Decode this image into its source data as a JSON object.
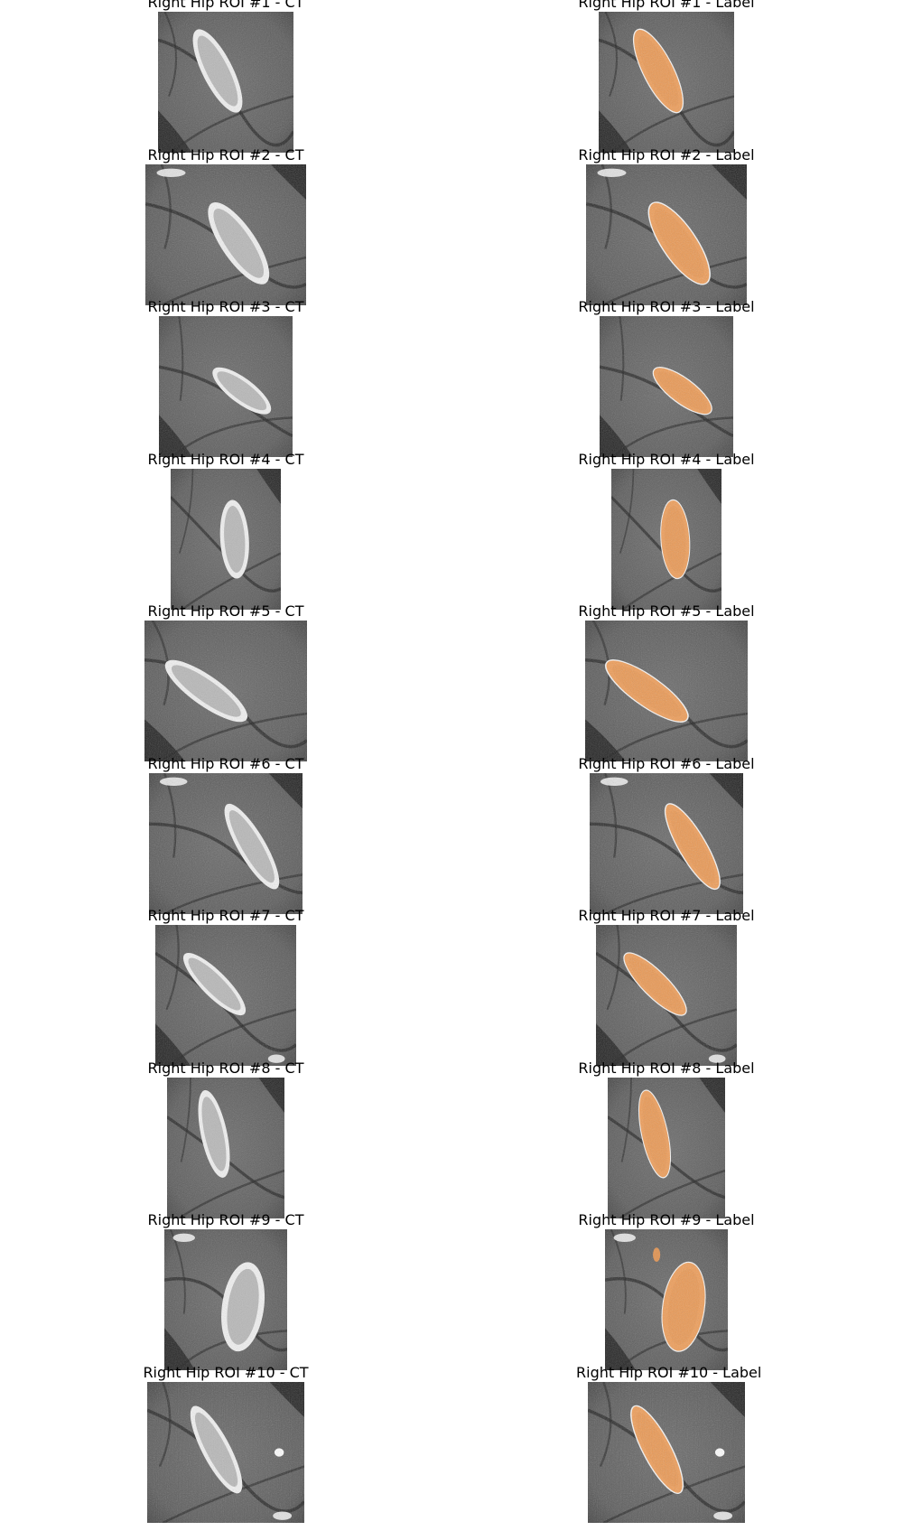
{
  "figure": {
    "rows": [
      {
        "ct_title": "Right Hip ROI #1 - CT",
        "label_title": "Right Hip ROI #1 - Label",
        "variant": "pelvis-diagonal-left"
      },
      {
        "ct_title": "Right Hip ROI #2 - CT",
        "label_title": "Right Hip ROI #2 - Label",
        "variant": "elongated-right"
      },
      {
        "ct_title": "Right Hip ROI #3 - CT",
        "label_title": "Right Hip ROI #3 - Label",
        "variant": "horizontal-tilt"
      },
      {
        "ct_title": "Right Hip ROI #4 - CT",
        "label_title": "Right Hip ROI #4 - Label",
        "variant": "small-oval"
      },
      {
        "ct_title": "Right Hip ROI #5 - CT",
        "label_title": "Right Hip ROI #5 - Label",
        "variant": "wide-oval"
      },
      {
        "ct_title": "Right Hip ROI #6 - CT",
        "label_title": "Right Hip ROI #6 - Label",
        "variant": "narrow-diagonal"
      },
      {
        "ct_title": "Right Hip ROI #7 - CT",
        "label_title": "Right Hip ROI #7 - Label",
        "variant": "horizontal-oval"
      },
      {
        "ct_title": "Right Hip ROI #8 - CT",
        "label_title": "Right Hip ROI #8 - Label",
        "variant": "vertical-oval"
      },
      {
        "ct_title": "Right Hip ROI #9 - CT",
        "label_title": "Right Hip ROI #9 - Label",
        "variant": "femoral-head"
      },
      {
        "ct_title": "Right Hip ROI #10 - CT",
        "label_title": "Right Hip ROI #10 - Label",
        "variant": "diagonal-with-artifact"
      }
    ],
    "colors": {
      "background": "#ffffff",
      "ct_soft_tissue": "#5a5a5a",
      "ct_dark": "#1a1a1a",
      "bone": "#f2f2f2",
      "label_overlay": "#f0964a",
      "label_outline": "#ffffff"
    }
  }
}
